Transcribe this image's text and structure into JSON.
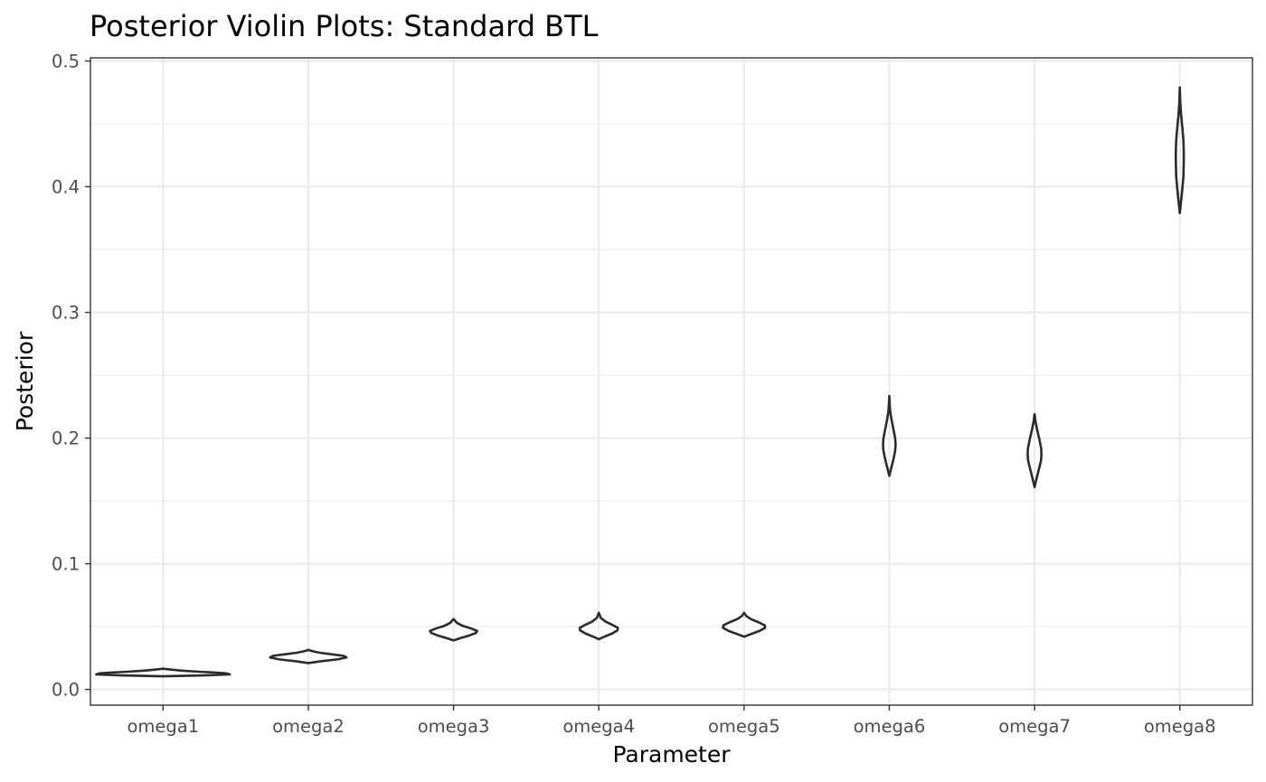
{
  "chart_data": {
    "type": "violin",
    "title": "Posterior Violin Plots: Standard BTL",
    "xlabel": "Parameter",
    "ylabel": "Posterior",
    "ylim": [
      -0.0125,
      0.5025
    ],
    "yticks": [
      "0.0",
      "0.1",
      "0.2",
      "0.3",
      "0.4",
      "0.5"
    ],
    "grid": true,
    "legend": "none",
    "categories": [
      "omega1",
      "omega2",
      "omega3",
      "omega4",
      "omega5",
      "omega6",
      "omega7",
      "omega8"
    ],
    "violins": [
      {
        "name": "omega1",
        "min": 0.0105,
        "max": 0.0165,
        "profile": [
          [
            0.0105,
            0.0
          ],
          [
            0.0112,
            0.62
          ],
          [
            0.012,
            1.0
          ],
          [
            0.0128,
            0.95
          ],
          [
            0.0135,
            0.75
          ],
          [
            0.0142,
            0.5
          ],
          [
            0.015,
            0.28
          ],
          [
            0.0158,
            0.12
          ],
          [
            0.0165,
            0.0
          ]
        ]
      },
      {
        "name": "omega2",
        "min": 0.021,
        "max": 0.0315,
        "profile": [
          [
            0.021,
            0.0
          ],
          [
            0.0225,
            0.35
          ],
          [
            0.024,
            0.78
          ],
          [
            0.0255,
            1.0
          ],
          [
            0.0268,
            0.92
          ],
          [
            0.028,
            0.6
          ],
          [
            0.0292,
            0.3
          ],
          [
            0.0305,
            0.1
          ],
          [
            0.0315,
            0.0
          ]
        ]
      },
      {
        "name": "omega3",
        "min": 0.039,
        "max": 0.056,
        "profile": [
          [
            0.039,
            0.0
          ],
          [
            0.041,
            0.32
          ],
          [
            0.043,
            0.68
          ],
          [
            0.045,
            0.95
          ],
          [
            0.0465,
            1.0
          ],
          [
            0.0485,
            0.75
          ],
          [
            0.0505,
            0.4
          ],
          [
            0.053,
            0.14
          ],
          [
            0.056,
            0.0
          ]
        ]
      },
      {
        "name": "omega4",
        "min": 0.04,
        "max": 0.061,
        "profile": [
          [
            0.04,
            0.0
          ],
          [
            0.042,
            0.3
          ],
          [
            0.0445,
            0.7
          ],
          [
            0.047,
            0.98
          ],
          [
            0.049,
            1.0
          ],
          [
            0.0515,
            0.7
          ],
          [
            0.054,
            0.35
          ],
          [
            0.057,
            0.1
          ],
          [
            0.061,
            0.0
          ]
        ]
      },
      {
        "name": "omega5",
        "min": 0.042,
        "max": 0.061,
        "profile": [
          [
            0.042,
            0.0
          ],
          [
            0.044,
            0.32
          ],
          [
            0.0465,
            0.72
          ],
          [
            0.049,
            1.0
          ],
          [
            0.051,
            0.98
          ],
          [
            0.0535,
            0.68
          ],
          [
            0.056,
            0.32
          ],
          [
            0.0585,
            0.1
          ],
          [
            0.061,
            0.0
          ]
        ]
      },
      {
        "name": "omega6",
        "min": 0.17,
        "max": 0.2335,
        "profile": [
          [
            0.17,
            0.0
          ],
          [
            0.176,
            0.3
          ],
          [
            0.183,
            0.65
          ],
          [
            0.19,
            0.93
          ],
          [
            0.195,
            1.0
          ],
          [
            0.2,
            0.92
          ],
          [
            0.207,
            0.65
          ],
          [
            0.214,
            0.38
          ],
          [
            0.221,
            0.14
          ],
          [
            0.229,
            0.04
          ],
          [
            0.2335,
            0.0
          ]
        ]
      },
      {
        "name": "omega7",
        "min": 0.161,
        "max": 0.219,
        "profile": [
          [
            0.161,
            0.0
          ],
          [
            0.168,
            0.3
          ],
          [
            0.175,
            0.62
          ],
          [
            0.182,
            0.93
          ],
          [
            0.187,
            1.0
          ],
          [
            0.192,
            0.95
          ],
          [
            0.199,
            0.7
          ],
          [
            0.206,
            0.4
          ],
          [
            0.213,
            0.14
          ],
          [
            0.219,
            0.0
          ]
        ]
      },
      {
        "name": "omega8",
        "min": 0.379,
        "max": 0.479,
        "profile": [
          [
            0.379,
            0.0
          ],
          [
            0.388,
            0.3
          ],
          [
            0.398,
            0.62
          ],
          [
            0.408,
            0.9
          ],
          [
            0.418,
            0.98
          ],
          [
            0.427,
            1.0
          ],
          [
            0.437,
            0.9
          ],
          [
            0.448,
            0.6
          ],
          [
            0.458,
            0.3
          ],
          [
            0.468,
            0.1
          ],
          [
            0.479,
            0.0
          ]
        ]
      }
    ]
  }
}
